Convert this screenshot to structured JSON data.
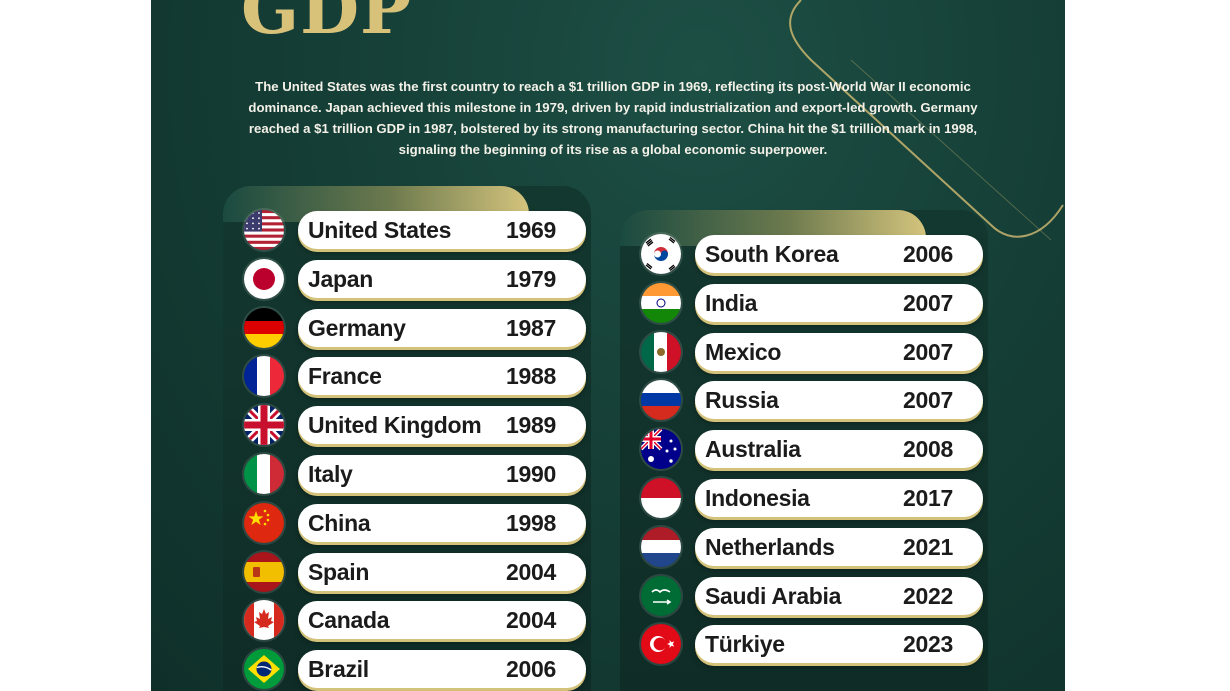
{
  "title": "GDP",
  "description": "The United States was the first country to reach a $1 trillion GDP in 1969, reflecting its post-World War II economic dominance.  Japan achieved this milestone in 1979, driven by rapid industrialization and export-led growth. Germany reached a $1 trillion GDP in 1987, bolstered by its strong manufacturing sector.  China hit the $1 trillion mark in 1998, signaling the beginning of its rise as a global economic superpower.",
  "colors": {
    "background": "#153f37",
    "accent_gold": "#d8c27a",
    "pill": "#ffffff"
  },
  "left_list": [
    {
      "country": "United States",
      "year": "1969",
      "flag": "us-flag-icon"
    },
    {
      "country": "Japan",
      "year": "1979",
      "flag": "japan-flag-icon"
    },
    {
      "country": "Germany",
      "year": "1987",
      "flag": "germany-flag-icon"
    },
    {
      "country": "France",
      "year": "1988",
      "flag": "france-flag-icon"
    },
    {
      "country": "United Kingdom",
      "year": "1989",
      "flag": "uk-flag-icon"
    },
    {
      "country": "Italy",
      "year": "1990",
      "flag": "italy-flag-icon"
    },
    {
      "country": "China",
      "year": "1998",
      "flag": "china-flag-icon"
    },
    {
      "country": "Spain",
      "year": "2004",
      "flag": "spain-flag-icon"
    },
    {
      "country": "Canada",
      "year": "2004",
      "flag": "canada-flag-icon"
    },
    {
      "country": "Brazil",
      "year": "2006",
      "flag": "brazil-flag-icon"
    }
  ],
  "right_list": [
    {
      "country": "South Korea",
      "year": "2006",
      "flag": "south-korea-flag-icon"
    },
    {
      "country": "India",
      "year": "2007",
      "flag": "india-flag-icon"
    },
    {
      "country": "Mexico",
      "year": "2007",
      "flag": "mexico-flag-icon"
    },
    {
      "country": "Russia",
      "year": "2007",
      "flag": "russia-flag-icon"
    },
    {
      "country": "Australia",
      "year": "2008",
      "flag": "australia-flag-icon"
    },
    {
      "country": "Indonesia",
      "year": "2017",
      "flag": "indonesia-flag-icon"
    },
    {
      "country": "Netherlands",
      "year": "2021",
      "flag": "netherlands-flag-icon"
    },
    {
      "country": "Saudi Arabia",
      "year": "2022",
      "flag": "saudi-arabia-flag-icon"
    },
    {
      "country": "Türkiye",
      "year": "2023",
      "flag": "turkiye-flag-icon"
    }
  ]
}
